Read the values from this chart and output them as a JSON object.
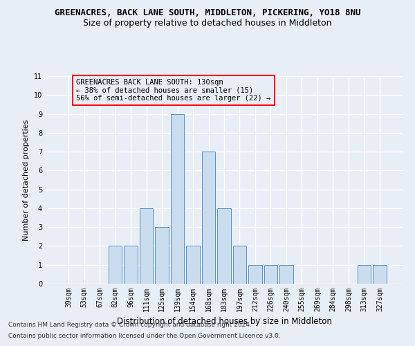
{
  "title": "GREENACRES, BACK LANE SOUTH, MIDDLETON, PICKERING, YO18 8NU",
  "subtitle": "Size of property relative to detached houses in Middleton",
  "xlabel": "Distribution of detached houses by size in Middleton",
  "ylabel": "Number of detached properties",
  "categories": [
    "39sqm",
    "53sqm",
    "67sqm",
    "82sqm",
    "96sqm",
    "111sqm",
    "125sqm",
    "139sqm",
    "154sqm",
    "168sqm",
    "183sqm",
    "197sqm",
    "212sqm",
    "226sqm",
    "240sqm",
    "255sqm",
    "269sqm",
    "284sqm",
    "298sqm",
    "313sqm",
    "327sqm"
  ],
  "values": [
    0,
    0,
    0,
    2,
    2,
    4,
    3,
    9,
    2,
    7,
    4,
    2,
    1,
    1,
    1,
    0,
    0,
    0,
    0,
    1,
    1
  ],
  "bar_color": "#c9ddef",
  "bar_edge_color": "#5a8fc2",
  "ylim": [
    0,
    11
  ],
  "yticks": [
    0,
    1,
    2,
    3,
    4,
    5,
    6,
    7,
    8,
    9,
    10,
    11
  ],
  "annotation_text": "GREENACRES BACK LANE SOUTH: 130sqm\n← 38% of detached houses are smaller (15)\n56% of semi-detached houses are larger (22) →",
  "footer1": "Contains HM Land Registry data © Crown copyright and database right 2024.",
  "footer2": "Contains public sector information licensed under the Open Government Licence v3.0.",
  "background_color": "#e8eef6",
  "grid_color": "#ffffff",
  "title_fontsize": 9,
  "subtitle_fontsize": 9,
  "xlabel_fontsize": 8.5,
  "ylabel_fontsize": 8,
  "tick_fontsize": 7,
  "annotation_fontsize": 7.5,
  "footer_fontsize": 6.5
}
